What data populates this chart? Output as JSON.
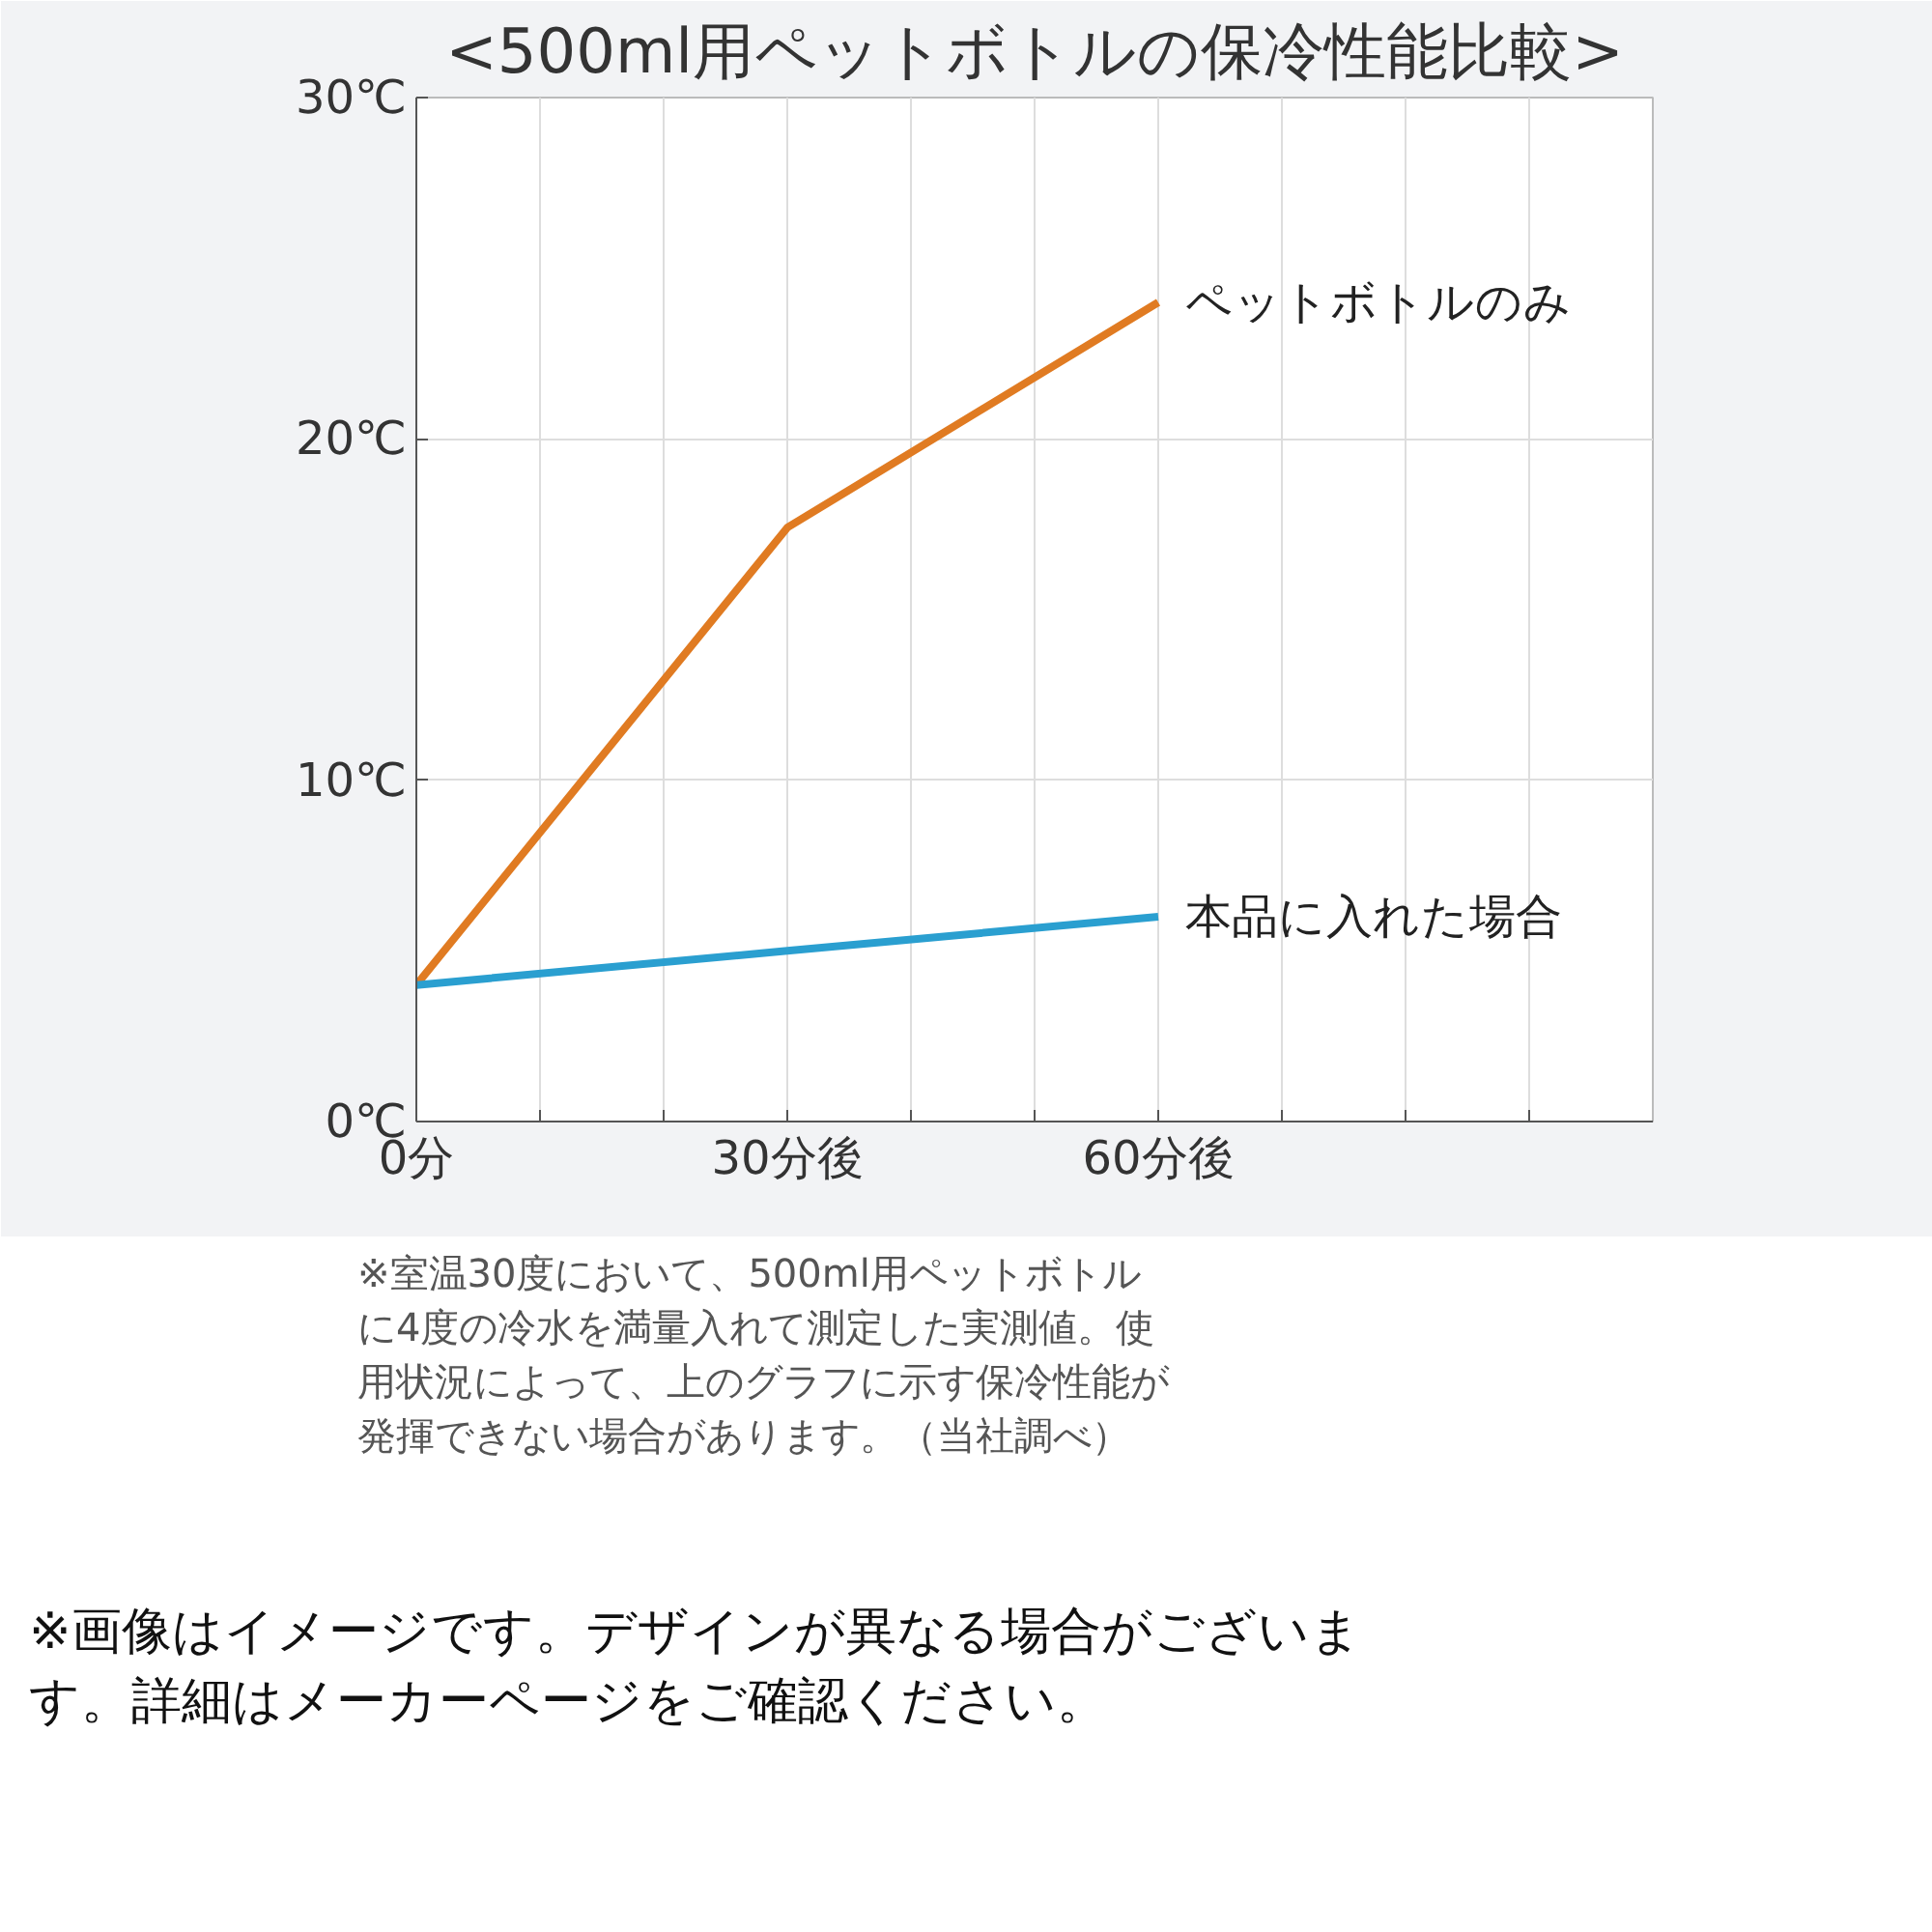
{
  "chart_data": {
    "type": "line",
    "title": "<500ml用ペットボトルの保冷性能比較>",
    "x": [
      0,
      30,
      60
    ],
    "series": [
      {
        "name": "ペットボトルのみ",
        "color": "#e07b22",
        "values": [
          4,
          17.4,
          24
        ]
      },
      {
        "name": "本品に入れた場合",
        "color": "#2a9fd0",
        "values": [
          4,
          5,
          6
        ]
      }
    ],
    "xlim": [
      0,
      100
    ],
    "xticks": [
      {
        "value": 0,
        "label": "0分"
      },
      {
        "value": 10,
        "label": null
      },
      {
        "value": 20,
        "label": null
      },
      {
        "value": 30,
        "label": "30分後"
      },
      {
        "value": 40,
        "label": null
      },
      {
        "value": 50,
        "label": null
      },
      {
        "value": 60,
        "label": "60分後"
      },
      {
        "value": 70,
        "label": null
      },
      {
        "value": 80,
        "label": null
      },
      {
        "value": 90,
        "label": null
      }
    ],
    "ylim": [
      0,
      30
    ],
    "yticks": [
      {
        "value": 0,
        "label": "0℃"
      },
      {
        "value": 10,
        "label": "10℃"
      },
      {
        "value": 20,
        "label": "20℃"
      },
      {
        "value": 30,
        "label": "30℃"
      }
    ],
    "grid": true,
    "annotations": [
      "※室温30度において、500ml用ペットボトルに4度の冷水を満量入れて測定した実測値。使用状況によって、上のグラフに示す保冷性能が発揮できない場合があります。（当社調べ）",
      "※画像はイメージです。デザインが異なる場合がございます。詳細はメーカーページをご確認ください。"
    ]
  }
}
